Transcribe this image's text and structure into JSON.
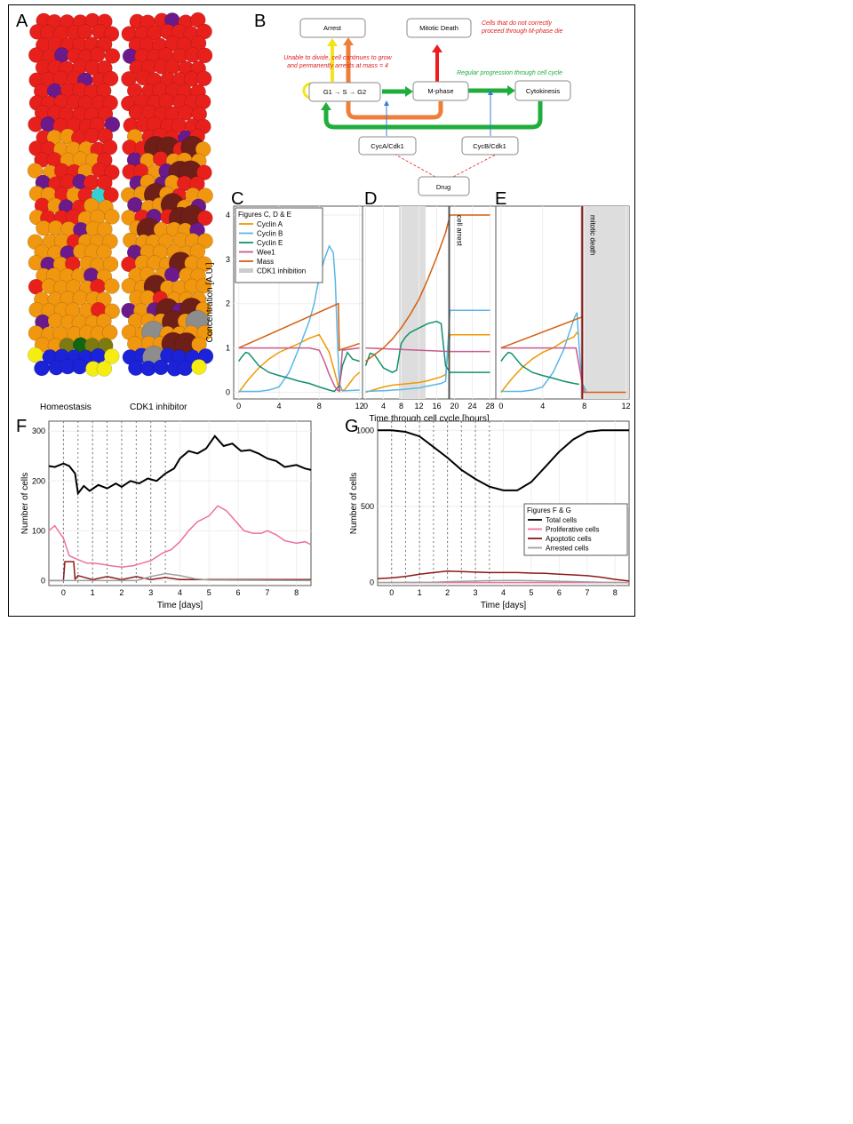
{
  "panel_labels": [
    "A",
    "B",
    "C",
    "D",
    "E",
    "F",
    "G"
  ],
  "panel_a": {
    "captions": [
      "Homeostasis",
      "CDK1 inhibitor"
    ],
    "colors": {
      "red": "#e8201c",
      "orange": "#f0960f",
      "purple": "#6a1a8a",
      "blue": "#1c22d8",
      "yellow": "#f5ec14",
      "olive": "#7d7a12",
      "darkgreen": "#116611",
      "maroon": "#6e1f17",
      "gray": "#8d8d8d",
      "cyan": "#35d0d0"
    }
  },
  "panel_b": {
    "boxes": {
      "arrest": "Arrest",
      "mitotic_death": "Mitotic Death",
      "g1s": "G1 → S → G2",
      "mphase": "M-phase",
      "cytokinesis": "Cytokinesis",
      "cyca": "CycA/Cdk1",
      "cycb": "CycB/Cdk1",
      "drug": "Drug"
    },
    "notes": {
      "arrest_1": "Unable to divide, cell continues to grow",
      "arrest_2": "and permanently arrests at mass = 4",
      "death_1": "Cells that do not correctly",
      "death_2": "proceed through M-phase die",
      "regular": "Regular progression through cell cycle"
    },
    "colors": {
      "green": "#1fae3c",
      "orange": "#ee7f3a",
      "red": "#ee1c1c",
      "yellow": "#f2e51c",
      "blue": "#3a7fd0"
    }
  },
  "chart_data": [
    {
      "panel": "C",
      "type": "line",
      "xlabel": "",
      "ylabel": "Concentration [A.U.]",
      "xlim": [
        -0.5,
        12.3
      ],
      "ylim": [
        -0.15,
        4.2
      ],
      "xticks": [
        "0",
        "4",
        "8",
        "12"
      ],
      "yticks": [
        "0",
        "1",
        "2",
        "3",
        "4"
      ],
      "legend": {
        "title": "Figures C, D & E",
        "entries": [
          "Cyclin A",
          "Cyclin B",
          "Cyclin E",
          "Wee1",
          "Mass",
          "CDK1 inhibition"
        ],
        "placement": "top-left"
      },
      "series": [
        {
          "name": "Cyclin A",
          "color": "#ef9a00",
          "x": [
            0,
            1,
            2,
            3,
            4,
            5,
            6,
            7,
            8,
            9,
            9.6,
            10,
            10.5,
            11,
            11.5,
            12
          ],
          "y": [
            0,
            0.3,
            0.55,
            0.75,
            0.9,
            1.0,
            1.1,
            1.22,
            1.3,
            0.9,
            0.4,
            0.05,
            0.05,
            0.2,
            0.35,
            0.45
          ]
        },
        {
          "name": "Cyclin B",
          "color": "#58b7e8",
          "x": [
            0,
            2,
            3,
            4,
            5,
            6,
            7,
            7.5,
            8,
            8.5,
            9,
            9.4,
            9.6,
            9.8,
            10,
            10.3,
            12
          ],
          "y": [
            0.02,
            0.02,
            0.05,
            0.12,
            0.45,
            1.0,
            1.6,
            2.0,
            2.6,
            3.0,
            3.3,
            3.15,
            2.5,
            1.2,
            0.2,
            0.03,
            0.05
          ]
        },
        {
          "name": "Cyclin E",
          "color": "#12906e",
          "x": [
            0,
            0.3,
            0.7,
            1,
            2,
            3,
            4,
            5,
            6,
            7,
            8,
            9,
            9.5,
            10,
            10.3,
            10.8,
            11.3,
            12
          ],
          "y": [
            0.7,
            0.8,
            0.9,
            0.88,
            0.6,
            0.45,
            0.38,
            0.32,
            0.25,
            0.2,
            0.12,
            0.05,
            0.02,
            0.15,
            0.6,
            0.9,
            0.75,
            0.7
          ]
        },
        {
          "name": "Wee1",
          "color": "#c95a8e",
          "x": [
            0,
            6,
            7,
            8,
            8.5,
            9,
            9.5,
            9.8,
            10,
            10.3,
            12
          ],
          "y": [
            1,
            1,
            1,
            0.95,
            0.7,
            0.4,
            0.15,
            0.05,
            0.02,
            0.95,
            1
          ]
        },
        {
          "name": "Mass",
          "color": "#d65f0e",
          "x": [
            0,
            9.9,
            10,
            12
          ],
          "y": [
            1,
            2.0,
            0.95,
            1.1
          ]
        }
      ],
      "shading": []
    },
    {
      "panel": "D",
      "type": "line",
      "xlabel": "Time through cell cycle [hours]",
      "ylabel": "",
      "xlim": [
        -0.7,
        29.3
      ],
      "ylim": [
        -0.15,
        4.2
      ],
      "xticks": [
        "0",
        "4",
        "8",
        "12",
        "16",
        "20",
        "24",
        "28"
      ],
      "yticks": [],
      "annotation": "cell arrest",
      "series": [
        {
          "name": "Cyclin A",
          "color": "#ef9a00",
          "x": [
            0,
            4,
            6,
            8,
            10,
            12,
            14,
            17,
            18,
            19,
            28
          ],
          "y": [
            0,
            0.12,
            0.16,
            0.18,
            0.2,
            0.22,
            0.26,
            0.35,
            0.4,
            1.3,
            1.3
          ]
        },
        {
          "name": "Cyclin B",
          "color": "#58b7e8",
          "x": [
            0,
            5,
            6,
            8,
            10,
            12,
            14,
            17,
            18,
            19,
            28
          ],
          "y": [
            0.02,
            0.04,
            0.05,
            0.06,
            0.08,
            0.1,
            0.14,
            0.2,
            0.25,
            1.85,
            1.85
          ]
        },
        {
          "name": "Cyclin E",
          "color": "#12906e",
          "x": [
            0,
            1,
            2,
            4,
            6,
            7,
            8,
            9,
            10,
            12,
            14,
            16,
            17,
            18,
            19,
            28
          ],
          "y": [
            0.6,
            0.88,
            0.85,
            0.55,
            0.45,
            0.5,
            1.1,
            1.25,
            1.35,
            1.45,
            1.55,
            1.6,
            1.55,
            0.6,
            0.45,
            0.45
          ]
        },
        {
          "name": "Wee1",
          "color": "#c95a8e",
          "x": [
            0,
            19,
            28
          ],
          "y": [
            1,
            0.92,
            0.92
          ]
        },
        {
          "name": "Mass",
          "color": "#d65f0e",
          "x": [
            0,
            2,
            4,
            6,
            8,
            10,
            12,
            14,
            16,
            18,
            19,
            28
          ],
          "y": [
            0.7,
            0.85,
            1.0,
            1.2,
            1.45,
            1.75,
            2.1,
            2.55,
            3.05,
            3.6,
            4.0,
            4.0
          ]
        }
      ],
      "shading": [
        [
          7.5,
          13.5
        ]
      ],
      "vline": 18.8
    },
    {
      "panel": "E",
      "type": "line",
      "xlabel": "",
      "ylabel": "",
      "xlim": [
        -0.5,
        12.3
      ],
      "ylim": [
        -0.15,
        4.2
      ],
      "xticks": [
        "0",
        "4",
        "8",
        "12"
      ],
      "yticks": [],
      "annotation": "mitotic death",
      "series": [
        {
          "name": "Cyclin A",
          "color": "#ef9a00",
          "x": [
            0,
            1,
            2,
            3,
            4,
            5,
            6,
            7,
            7.3,
            7.5
          ],
          "y": [
            0,
            0.3,
            0.55,
            0.75,
            0.9,
            1.0,
            1.15,
            1.25,
            1.35,
            1.3
          ]
        },
        {
          "name": "Cyclin B",
          "color": "#58b7e8",
          "x": [
            0,
            2,
            3,
            4,
            5,
            6,
            6.5,
            7,
            7.3,
            7.5,
            7.8,
            8.2
          ],
          "y": [
            0.02,
            0.02,
            0.05,
            0.12,
            0.45,
            0.95,
            1.3,
            1.65,
            1.8,
            1.0,
            0.2,
            0.02
          ]
        },
        {
          "name": "Cyclin E",
          "color": "#12906e",
          "x": [
            0,
            0.3,
            0.7,
            1,
            2,
            3,
            4,
            5,
            6,
            7,
            7.5
          ],
          "y": [
            0.7,
            0.8,
            0.9,
            0.88,
            0.6,
            0.45,
            0.38,
            0.32,
            0.25,
            0.2,
            0.18
          ]
        },
        {
          "name": "Wee1",
          "color": "#c95a8e",
          "x": [
            0,
            7.2,
            7.5,
            7.8,
            8.0
          ],
          "y": [
            1,
            1,
            0.6,
            0.2,
            0
          ]
        },
        {
          "name": "Mass",
          "color": "#d65f0e",
          "x": [
            0,
            7.8,
            7.8,
            12
          ],
          "y": [
            1,
            1.7,
            0,
            0
          ]
        }
      ],
      "shading": [
        [
          7.6,
          12.3
        ]
      ],
      "vline": 7.8
    },
    {
      "panel": "F",
      "type": "line",
      "xlabel": "Time [days]",
      "ylabel": "Number of cells",
      "xlim": [
        -0.5,
        8.5
      ],
      "ylim": [
        -10,
        320
      ],
      "xticks": [
        "0",
        "1",
        "2",
        "3",
        "4",
        "5",
        "6",
        "7",
        "8"
      ],
      "yticks": [
        "0",
        "100",
        "200",
        "300"
      ],
      "dotted_x": [
        0,
        0.5,
        1,
        1.5,
        2,
        2.5,
        3,
        3.5
      ],
      "series": [
        {
          "name": "Total cells",
          "color": "#000000",
          "x": [
            -0.5,
            -0.3,
            0,
            0.2,
            0.4,
            0.5,
            0.7,
            0.9,
            1.2,
            1.5,
            1.8,
            2.0,
            2.3,
            2.6,
            2.9,
            3.2,
            3.5,
            3.8,
            4.0,
            4.3,
            4.6,
            4.9,
            5.2,
            5.5,
            5.8,
            6.1,
            6.4,
            6.7,
            7.0,
            7.3,
            7.6,
            8.0,
            8.3,
            8.5
          ],
          "y": [
            230,
            228,
            235,
            230,
            215,
            175,
            190,
            180,
            192,
            185,
            195,
            188,
            200,
            195,
            205,
            200,
            215,
            225,
            245,
            260,
            255,
            265,
            290,
            270,
            275,
            260,
            262,
            255,
            245,
            240,
            228,
            232,
            225,
            222
          ]
        },
        {
          "name": "Proliferative cells",
          "color": "#ee6fa3",
          "x": [
            -0.5,
            -0.3,
            0,
            0.2,
            0.5,
            0.8,
            1.0,
            1.3,
            1.6,
            2.0,
            2.4,
            2.7,
            3.0,
            3.4,
            3.7,
            4.0,
            4.3,
            4.6,
            5.0,
            5.3,
            5.6,
            5.9,
            6.2,
            6.5,
            6.8,
            7.0,
            7.3,
            7.6,
            8.0,
            8.3,
            8.5
          ],
          "y": [
            100,
            110,
            85,
            50,
            42,
            35,
            35,
            33,
            30,
            27,
            30,
            35,
            40,
            55,
            62,
            78,
            100,
            118,
            130,
            150,
            140,
            120,
            100,
            95,
            95,
            100,
            92,
            80,
            75,
            78,
            72
          ]
        },
        {
          "name": "Apoptotic cells",
          "color": "#8b1a1a",
          "x": [
            -0.5,
            0,
            0.05,
            0.35,
            0.4,
            0.5,
            1.0,
            1.5,
            2.0,
            2.5,
            3.0,
            3.5,
            4,
            8.5
          ],
          "y": [
            0,
            0,
            38,
            38,
            3,
            10,
            2,
            8,
            2,
            8,
            2,
            6,
            2,
            2
          ]
        },
        {
          "name": "Arrested cells",
          "color": "#a0a0a0",
          "x": [
            -0.5,
            2.5,
            3,
            3.5,
            4,
            4.5,
            5,
            8.5
          ],
          "y": [
            0,
            0,
            8,
            14,
            10,
            4,
            1,
            0
          ]
        }
      ]
    },
    {
      "panel": "G",
      "type": "line",
      "xlabel": "Time [days]",
      "ylabel": "Number of cells",
      "xlim": [
        -0.5,
        8.5
      ],
      "ylim": [
        -20,
        1060
      ],
      "xticks": [
        "0",
        "1",
        "2",
        "3",
        "4",
        "5",
        "6",
        "7",
        "8"
      ],
      "yticks": [
        "0",
        "500",
        "1000"
      ],
      "dotted_x": [
        0,
        0.5,
        1,
        1.5,
        2,
        2.5,
        3,
        3.5
      ],
      "legend": {
        "title": "Figures F & G",
        "entries": [
          "Total cells",
          "Proliferative cells",
          "Apoptotic cells",
          "Arrested cells"
        ],
        "placement": "center-right"
      },
      "series": [
        {
          "name": "Total cells",
          "color": "#000000",
          "x": [
            -0.5,
            0,
            0.5,
            1,
            1.5,
            2,
            2.5,
            3,
            3.5,
            4,
            4.5,
            5,
            5.5,
            6,
            6.5,
            7,
            7.5,
            8,
            8.5
          ],
          "y": [
            1000,
            1000,
            990,
            960,
            890,
            820,
            740,
            680,
            630,
            605,
            605,
            660,
            760,
            860,
            940,
            990,
            1000,
            1000,
            1000
          ]
        },
        {
          "name": "Proliferative cells",
          "color": "#ee6fa3",
          "x": [
            -0.5,
            8.5
          ],
          "y": [
            0,
            0
          ]
        },
        {
          "name": "Apoptotic cells",
          "color": "#8b1a1a",
          "x": [
            -0.5,
            0,
            0.5,
            1,
            1.5,
            2,
            2.5,
            3,
            3.5,
            4,
            4.5,
            5,
            5.5,
            6,
            6.5,
            7,
            7.5,
            8,
            8.5
          ],
          "y": [
            25,
            30,
            40,
            55,
            65,
            75,
            72,
            68,
            65,
            65,
            65,
            62,
            60,
            55,
            50,
            45,
            35,
            20,
            10
          ]
        },
        {
          "name": "Arrested cells",
          "color": "#a0a0a0",
          "x": [
            -0.5,
            1.5,
            2.5,
            3.5,
            4.5,
            5.5,
            6.5,
            7.5,
            8.5
          ],
          "y": [
            0,
            2,
            8,
            12,
            14,
            10,
            6,
            2,
            0
          ]
        }
      ]
    }
  ]
}
